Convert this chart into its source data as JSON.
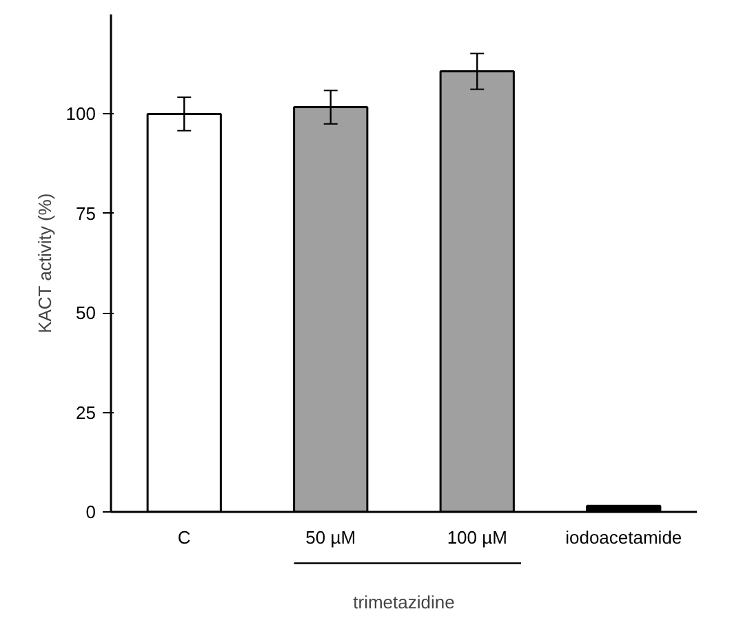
{
  "chart_data": {
    "type": "bar",
    "ylabel": "KACT activity (%)",
    "categories": [
      "C",
      "50 µM",
      "100 µM",
      "iodoacetamide"
    ],
    "values": [
      100,
      101.7,
      110.7,
      1.5
    ],
    "errors": [
      4.2,
      4.2,
      4.5,
      null
    ],
    "colors": [
      "#ffffff",
      "#a0a0a0",
      "#a0a0a0",
      "#000000"
    ],
    "ylim": [
      0,
      125
    ],
    "yticks": [
      0,
      25,
      50,
      75,
      100
    ],
    "annotations": [
      "trimetazidine"
    ]
  }
}
